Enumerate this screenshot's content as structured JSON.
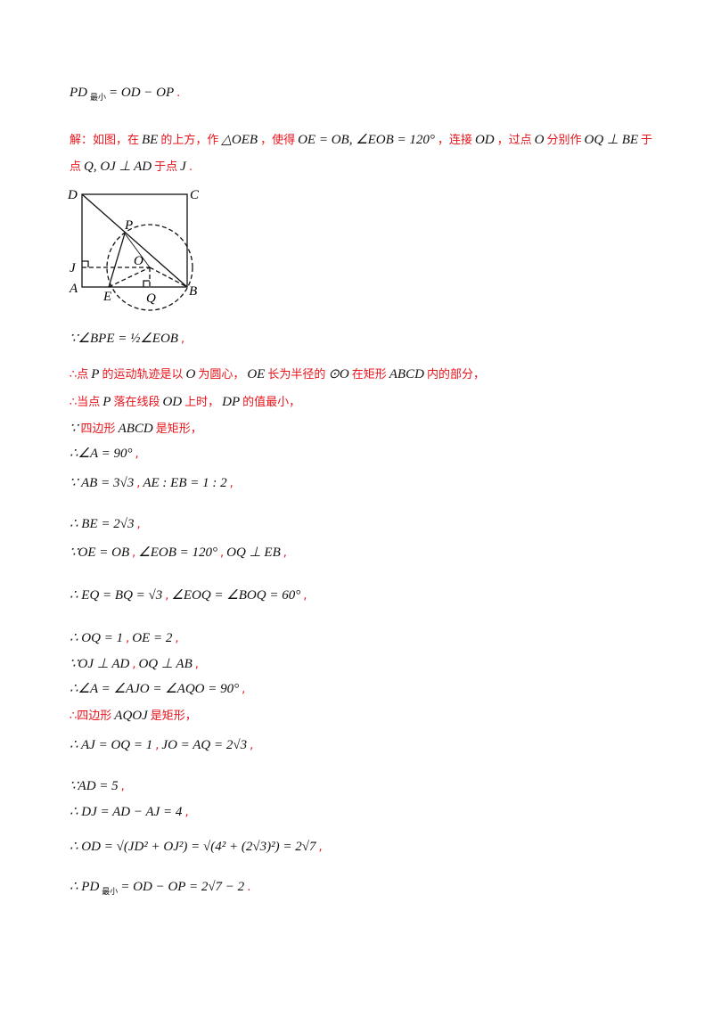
{
  "colors": {
    "red": "#e8141b",
    "black": "#111111"
  },
  "lines": [
    [
      {
        "t": "PD",
        "c": "black"
      },
      {
        "t": "最小",
        "c": "black",
        "sub": true
      },
      {
        "t": "= OD − OP",
        "c": "black"
      },
      {
        "t": ".",
        "c": "red"
      }
    ],
    [
      {
        "t": "解：如图，在",
        "c": "red"
      },
      {
        "t": "BE",
        "c": "black"
      },
      {
        "t": "的上方，作",
        "c": "red"
      },
      {
        "t": "△OEB",
        "c": "black"
      },
      {
        "t": "，使得",
        "c": "red"
      },
      {
        "t": "OE = OB, ∠EOB = 120°",
        "c": "black"
      },
      {
        "t": "，连接",
        "c": "red"
      },
      {
        "t": "OD",
        "c": "black"
      },
      {
        "t": "，过点",
        "c": "red"
      },
      {
        "t": "O",
        "c": "black"
      },
      {
        "t": "分别作",
        "c": "red"
      },
      {
        "t": "OQ ⊥ BE",
        "c": "black"
      },
      {
        "t": "于",
        "c": "red"
      }
    ],
    [
      {
        "t": "点",
        "c": "red"
      },
      {
        "t": "Q, OJ ⊥ AD",
        "c": "black"
      },
      {
        "t": "于点",
        "c": "red"
      },
      {
        "t": "J",
        "c": "black"
      },
      {
        "t": ".",
        "c": "red"
      }
    ],
    [
      {
        "t": "∵∠BPE = ½∠EOB",
        "c": "black"
      },
      {
        "t": ",",
        "c": "red"
      }
    ],
    [
      {
        "t": "∴点",
        "c": "red"
      },
      {
        "t": "P",
        "c": "black"
      },
      {
        "t": "的运动轨迹是以",
        "c": "red"
      },
      {
        "t": "O",
        "c": "black"
      },
      {
        "t": "为圆心，",
        "c": "red"
      },
      {
        "t": "OE",
        "c": "black"
      },
      {
        "t": "长为半径的",
        "c": "red"
      },
      {
        "t": "⊙O",
        "c": "black"
      },
      {
        "t": "在矩形",
        "c": "red"
      },
      {
        "t": "ABCD",
        "c": "black"
      },
      {
        "t": "内的部分，",
        "c": "red"
      }
    ],
    [
      {
        "t": "∴当点",
        "c": "red"
      },
      {
        "t": "P",
        "c": "black"
      },
      {
        "t": "落在线段",
        "c": "red"
      },
      {
        "t": "OD",
        "c": "black"
      },
      {
        "t": "上时，",
        "c": "red"
      },
      {
        "t": "DP",
        "c": "black"
      },
      {
        "t": "的值最小，",
        "c": "red"
      }
    ],
    [
      {
        "t": "∵",
        "c": "black"
      },
      {
        "t": "四边形",
        "c": "red"
      },
      {
        "t": "ABCD",
        "c": "black"
      },
      {
        "t": "是矩形，",
        "c": "red"
      }
    ],
    [
      {
        "t": "∴∠A = 90°",
        "c": "black"
      },
      {
        "t": ",",
        "c": "red"
      }
    ],
    [
      {
        "t": "∵ AB = 3√3",
        "c": "black"
      },
      {
        "t": ",",
        "c": "red"
      },
      {
        "t": "AE : EB = 1 : 2",
        "c": "black"
      },
      {
        "t": ",",
        "c": "red"
      }
    ],
    [
      {
        "t": "∴ BE = 2√3",
        "c": "black"
      },
      {
        "t": ",",
        "c": "red"
      }
    ],
    [
      {
        "t": "∵OE = OB",
        "c": "black"
      },
      {
        "t": ",",
        "c": "red"
      },
      {
        "t": "∠EOB = 120°",
        "c": "black"
      },
      {
        "t": ",",
        "c": "red"
      },
      {
        "t": "OQ ⊥ EB",
        "c": "black"
      },
      {
        "t": ",",
        "c": "red"
      }
    ],
    [
      {
        "t": "∴ EQ = BQ = √3",
        "c": "black"
      },
      {
        "t": ",",
        "c": "red"
      },
      {
        "t": "∠EOQ = ∠BOQ = 60°",
        "c": "black"
      },
      {
        "t": ",",
        "c": "red"
      }
    ],
    [
      {
        "t": "∴ OQ = 1",
        "c": "black"
      },
      {
        "t": ",",
        "c": "red"
      },
      {
        "t": "OE = 2",
        "c": "black"
      },
      {
        "t": ",",
        "c": "red"
      }
    ],
    [
      {
        "t": "∵OJ ⊥ AD",
        "c": "black"
      },
      {
        "t": ",",
        "c": "red"
      },
      {
        "t": "OQ ⊥ AB",
        "c": "black"
      },
      {
        "t": ",",
        "c": "red"
      }
    ],
    [
      {
        "t": "∴∠A = ∠AJO = ∠AQO = 90°",
        "c": "black"
      },
      {
        "t": ",",
        "c": "red"
      }
    ],
    [
      {
        "t": "∴四边形",
        "c": "red"
      },
      {
        "t": "AQOJ",
        "c": "black"
      },
      {
        "t": "是矩形，",
        "c": "red"
      }
    ],
    [
      {
        "t": "∴ AJ = OQ = 1",
        "c": "black"
      },
      {
        "t": ",",
        "c": "red"
      },
      {
        "t": "JO = AQ = 2√3",
        "c": "black"
      },
      {
        "t": ",",
        "c": "red"
      }
    ],
    [
      {
        "t": "∵AD = 5",
        "c": "black"
      },
      {
        "t": ",",
        "c": "red"
      }
    ],
    [
      {
        "t": "∴ DJ = AD − AJ = 4",
        "c": "black"
      },
      {
        "t": ",",
        "c": "red"
      }
    ],
    [
      {
        "t": "∴ OD = √(JD² + OJ²) = √(4² + (2√3)²) = 2√7",
        "c": "black"
      },
      {
        "t": ",",
        "c": "red"
      }
    ],
    [
      {
        "t": "∴ PD",
        "c": "black"
      },
      {
        "t": "最小",
        "c": "black",
        "sub": true
      },
      {
        "t": "= OD − OP = 2√7 − 2",
        "c": "black"
      },
      {
        "t": ".",
        "c": "red"
      }
    ]
  ],
  "diagram": {
    "labels": [
      "D",
      "C",
      "P",
      "O",
      "J",
      "A",
      "E",
      "Q",
      "B"
    ]
  }
}
